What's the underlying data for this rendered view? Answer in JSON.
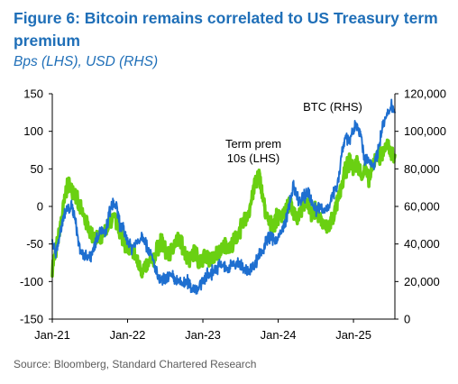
{
  "chart_data": {
    "type": "line",
    "title": "Figure 6: Bitcoin remains correlated to US Treasury term premium",
    "subtitle": "Bps (LHS), USD (RHS)",
    "source": "Source: Bloomberg, Standard Chartered Research",
    "x_tick_labels": [
      "Jan-21",
      "Jan-22",
      "Jan-23",
      "Jan-24",
      "Jan-25"
    ],
    "x_ticks": [
      2021.0,
      2022.0,
      2023.0,
      2024.0,
      2025.0
    ],
    "x_range": [
      2021.0,
      2025.55
    ],
    "y_left": {
      "range": [
        -150,
        150
      ],
      "ticks": [
        -150,
        -100,
        -50,
        0,
        50,
        100,
        150
      ],
      "tick_labels": [
        "-150",
        "-100",
        "-50",
        "0",
        "50",
        "100",
        "150"
      ]
    },
    "y_right": {
      "range": [
        0,
        120000
      ],
      "ticks": [
        0,
        20000,
        40000,
        60000,
        80000,
        100000,
        120000
      ],
      "tick_labels": [
        "0",
        "20,000",
        "40,000",
        "60,000",
        "80,000",
        "100,000",
        "120,000"
      ]
    },
    "grid": false,
    "annotations": [
      {
        "lines": [
          "Term prem",
          "10s (LHS)"
        ],
        "series": "term_premium"
      },
      {
        "lines": [
          "BTC (RHS)"
        ],
        "series": "btc"
      }
    ],
    "series": [
      {
        "key": "term_premium",
        "axis": "left",
        "color": "#6ad012",
        "points": [
          [
            2021.0,
            -80
          ],
          [
            2021.05,
            -60
          ],
          [
            2021.1,
            -30
          ],
          [
            2021.15,
            0
          ],
          [
            2021.2,
            30
          ],
          [
            2021.25,
            25
          ],
          [
            2021.3,
            20
          ],
          [
            2021.35,
            0
          ],
          [
            2021.4,
            -10
          ],
          [
            2021.45,
            -20
          ],
          [
            2021.5,
            -35
          ],
          [
            2021.55,
            -40
          ],
          [
            2021.6,
            -45
          ],
          [
            2021.65,
            -45
          ],
          [
            2021.7,
            -35
          ],
          [
            2021.75,
            -25
          ],
          [
            2021.8,
            -15
          ],
          [
            2021.85,
            -20
          ],
          [
            2021.9,
            -35
          ],
          [
            2021.95,
            -45
          ],
          [
            2022.0,
            -55
          ],
          [
            2022.05,
            -60
          ],
          [
            2022.1,
            -65
          ],
          [
            2022.15,
            -80
          ],
          [
            2022.2,
            -85
          ],
          [
            2022.25,
            -80
          ],
          [
            2022.3,
            -75
          ],
          [
            2022.35,
            -70
          ],
          [
            2022.4,
            -55
          ],
          [
            2022.45,
            -45
          ],
          [
            2022.5,
            -60
          ],
          [
            2022.55,
            -65
          ],
          [
            2022.6,
            -55
          ],
          [
            2022.65,
            -45
          ],
          [
            2022.7,
            -45
          ],
          [
            2022.75,
            -60
          ],
          [
            2022.8,
            -70
          ],
          [
            2022.85,
            -65
          ],
          [
            2022.9,
            -60
          ],
          [
            2022.95,
            -75
          ],
          [
            2023.0,
            -70
          ],
          [
            2023.05,
            -65
          ],
          [
            2023.1,
            -70
          ],
          [
            2023.15,
            -70
          ],
          [
            2023.2,
            -60
          ],
          [
            2023.25,
            -60
          ],
          [
            2023.3,
            -50
          ],
          [
            2023.35,
            -55
          ],
          [
            2023.4,
            -50
          ],
          [
            2023.45,
            -40
          ],
          [
            2023.5,
            -30
          ],
          [
            2023.55,
            -20
          ],
          [
            2023.6,
            -10
          ],
          [
            2023.65,
            10
          ],
          [
            2023.7,
            35
          ],
          [
            2023.75,
            40
          ],
          [
            2023.8,
            10
          ],
          [
            2023.85,
            -15
          ],
          [
            2023.9,
            -25
          ],
          [
            2023.95,
            -20
          ],
          [
            2024.0,
            -15
          ],
          [
            2024.05,
            -10
          ],
          [
            2024.1,
            -5
          ],
          [
            2024.15,
            0
          ],
          [
            2024.2,
            -5
          ],
          [
            2024.25,
            -15
          ],
          [
            2024.3,
            -5
          ],
          [
            2024.35,
            5
          ],
          [
            2024.4,
            0
          ],
          [
            2024.45,
            -10
          ],
          [
            2024.5,
            -5
          ],
          [
            2024.55,
            -15
          ],
          [
            2024.6,
            -25
          ],
          [
            2024.65,
            -30
          ],
          [
            2024.7,
            -20
          ],
          [
            2024.75,
            -10
          ],
          [
            2024.8,
            10
          ],
          [
            2024.85,
            30
          ],
          [
            2024.9,
            50
          ],
          [
            2024.95,
            60
          ],
          [
            2025.0,
            50
          ],
          [
            2025.05,
            60
          ],
          [
            2025.1,
            40
          ],
          [
            2025.15,
            50
          ],
          [
            2025.2,
            35
          ],
          [
            2025.25,
            50
          ],
          [
            2025.3,
            70
          ],
          [
            2025.35,
            65
          ],
          [
            2025.4,
            75
          ],
          [
            2025.45,
            80
          ],
          [
            2025.5,
            70
          ],
          [
            2025.55,
            68
          ]
        ]
      },
      {
        "key": "btc",
        "axis": "right",
        "color": "#1e6fd0",
        "points": [
          [
            2021.0,
            40000
          ],
          [
            2021.05,
            35000
          ],
          [
            2021.1,
            45000
          ],
          [
            2021.15,
            55000
          ],
          [
            2021.2,
            58000
          ],
          [
            2021.25,
            60000
          ],
          [
            2021.3,
            55000
          ],
          [
            2021.35,
            40000
          ],
          [
            2021.4,
            35000
          ],
          [
            2021.45,
            34000
          ],
          [
            2021.5,
            33000
          ],
          [
            2021.55,
            38000
          ],
          [
            2021.6,
            45000
          ],
          [
            2021.65,
            48000
          ],
          [
            2021.7,
            44000
          ],
          [
            2021.75,
            55000
          ],
          [
            2021.8,
            62000
          ],
          [
            2021.85,
            60000
          ],
          [
            2021.9,
            50000
          ],
          [
            2021.95,
            47000
          ],
          [
            2022.0,
            42000
          ],
          [
            2022.05,
            38000
          ],
          [
            2022.1,
            40000
          ],
          [
            2022.15,
            42000
          ],
          [
            2022.2,
            45000
          ],
          [
            2022.25,
            40000
          ],
          [
            2022.3,
            35000
          ],
          [
            2022.35,
            30000
          ],
          [
            2022.4,
            22000
          ],
          [
            2022.45,
            20000
          ],
          [
            2022.5,
            21000
          ],
          [
            2022.55,
            23000
          ],
          [
            2022.6,
            22000
          ],
          [
            2022.65,
            20000
          ],
          [
            2022.7,
            19000
          ],
          [
            2022.75,
            19500
          ],
          [
            2022.8,
            20000
          ],
          [
            2022.85,
            17000
          ],
          [
            2022.9,
            16500
          ],
          [
            2022.95,
            16800
          ],
          [
            2023.0,
            21000
          ],
          [
            2023.05,
            23000
          ],
          [
            2023.1,
            24000
          ],
          [
            2023.15,
            26000
          ],
          [
            2023.2,
            28000
          ],
          [
            2023.25,
            29000
          ],
          [
            2023.3,
            27000
          ],
          [
            2023.35,
            26500
          ],
          [
            2023.4,
            30000
          ],
          [
            2023.45,
            29500
          ],
          [
            2023.5,
            29000
          ],
          [
            2023.55,
            26000
          ],
          [
            2023.6,
            26500
          ],
          [
            2023.65,
            27000
          ],
          [
            2023.7,
            30000
          ],
          [
            2023.75,
            35000
          ],
          [
            2023.8,
            37000
          ],
          [
            2023.85,
            42000
          ],
          [
            2023.9,
            44000
          ],
          [
            2023.95,
            42500
          ],
          [
            2024.0,
            43000
          ],
          [
            2024.05,
            47000
          ],
          [
            2024.1,
            52000
          ],
          [
            2024.15,
            62000
          ],
          [
            2024.2,
            70000
          ],
          [
            2024.25,
            65000
          ],
          [
            2024.3,
            62000
          ],
          [
            2024.35,
            66000
          ],
          [
            2024.4,
            68000
          ],
          [
            2024.45,
            62000
          ],
          [
            2024.5,
            58000
          ],
          [
            2024.55,
            60000
          ],
          [
            2024.6,
            57000
          ],
          [
            2024.65,
            60000
          ],
          [
            2024.7,
            63000
          ],
          [
            2024.75,
            68000
          ],
          [
            2024.8,
            75000
          ],
          [
            2024.85,
            90000
          ],
          [
            2024.9,
            98000
          ],
          [
            2024.95,
            95000
          ],
          [
            2025.0,
            100000
          ],
          [
            2025.05,
            104000
          ],
          [
            2025.1,
            97000
          ],
          [
            2025.15,
            84000
          ],
          [
            2025.2,
            85000
          ],
          [
            2025.25,
            82000
          ],
          [
            2025.3,
            85000
          ],
          [
            2025.35,
            95000
          ],
          [
            2025.4,
            105000
          ],
          [
            2025.45,
            108000
          ],
          [
            2025.5,
            115000
          ],
          [
            2025.55,
            110000
          ]
        ]
      }
    ]
  }
}
